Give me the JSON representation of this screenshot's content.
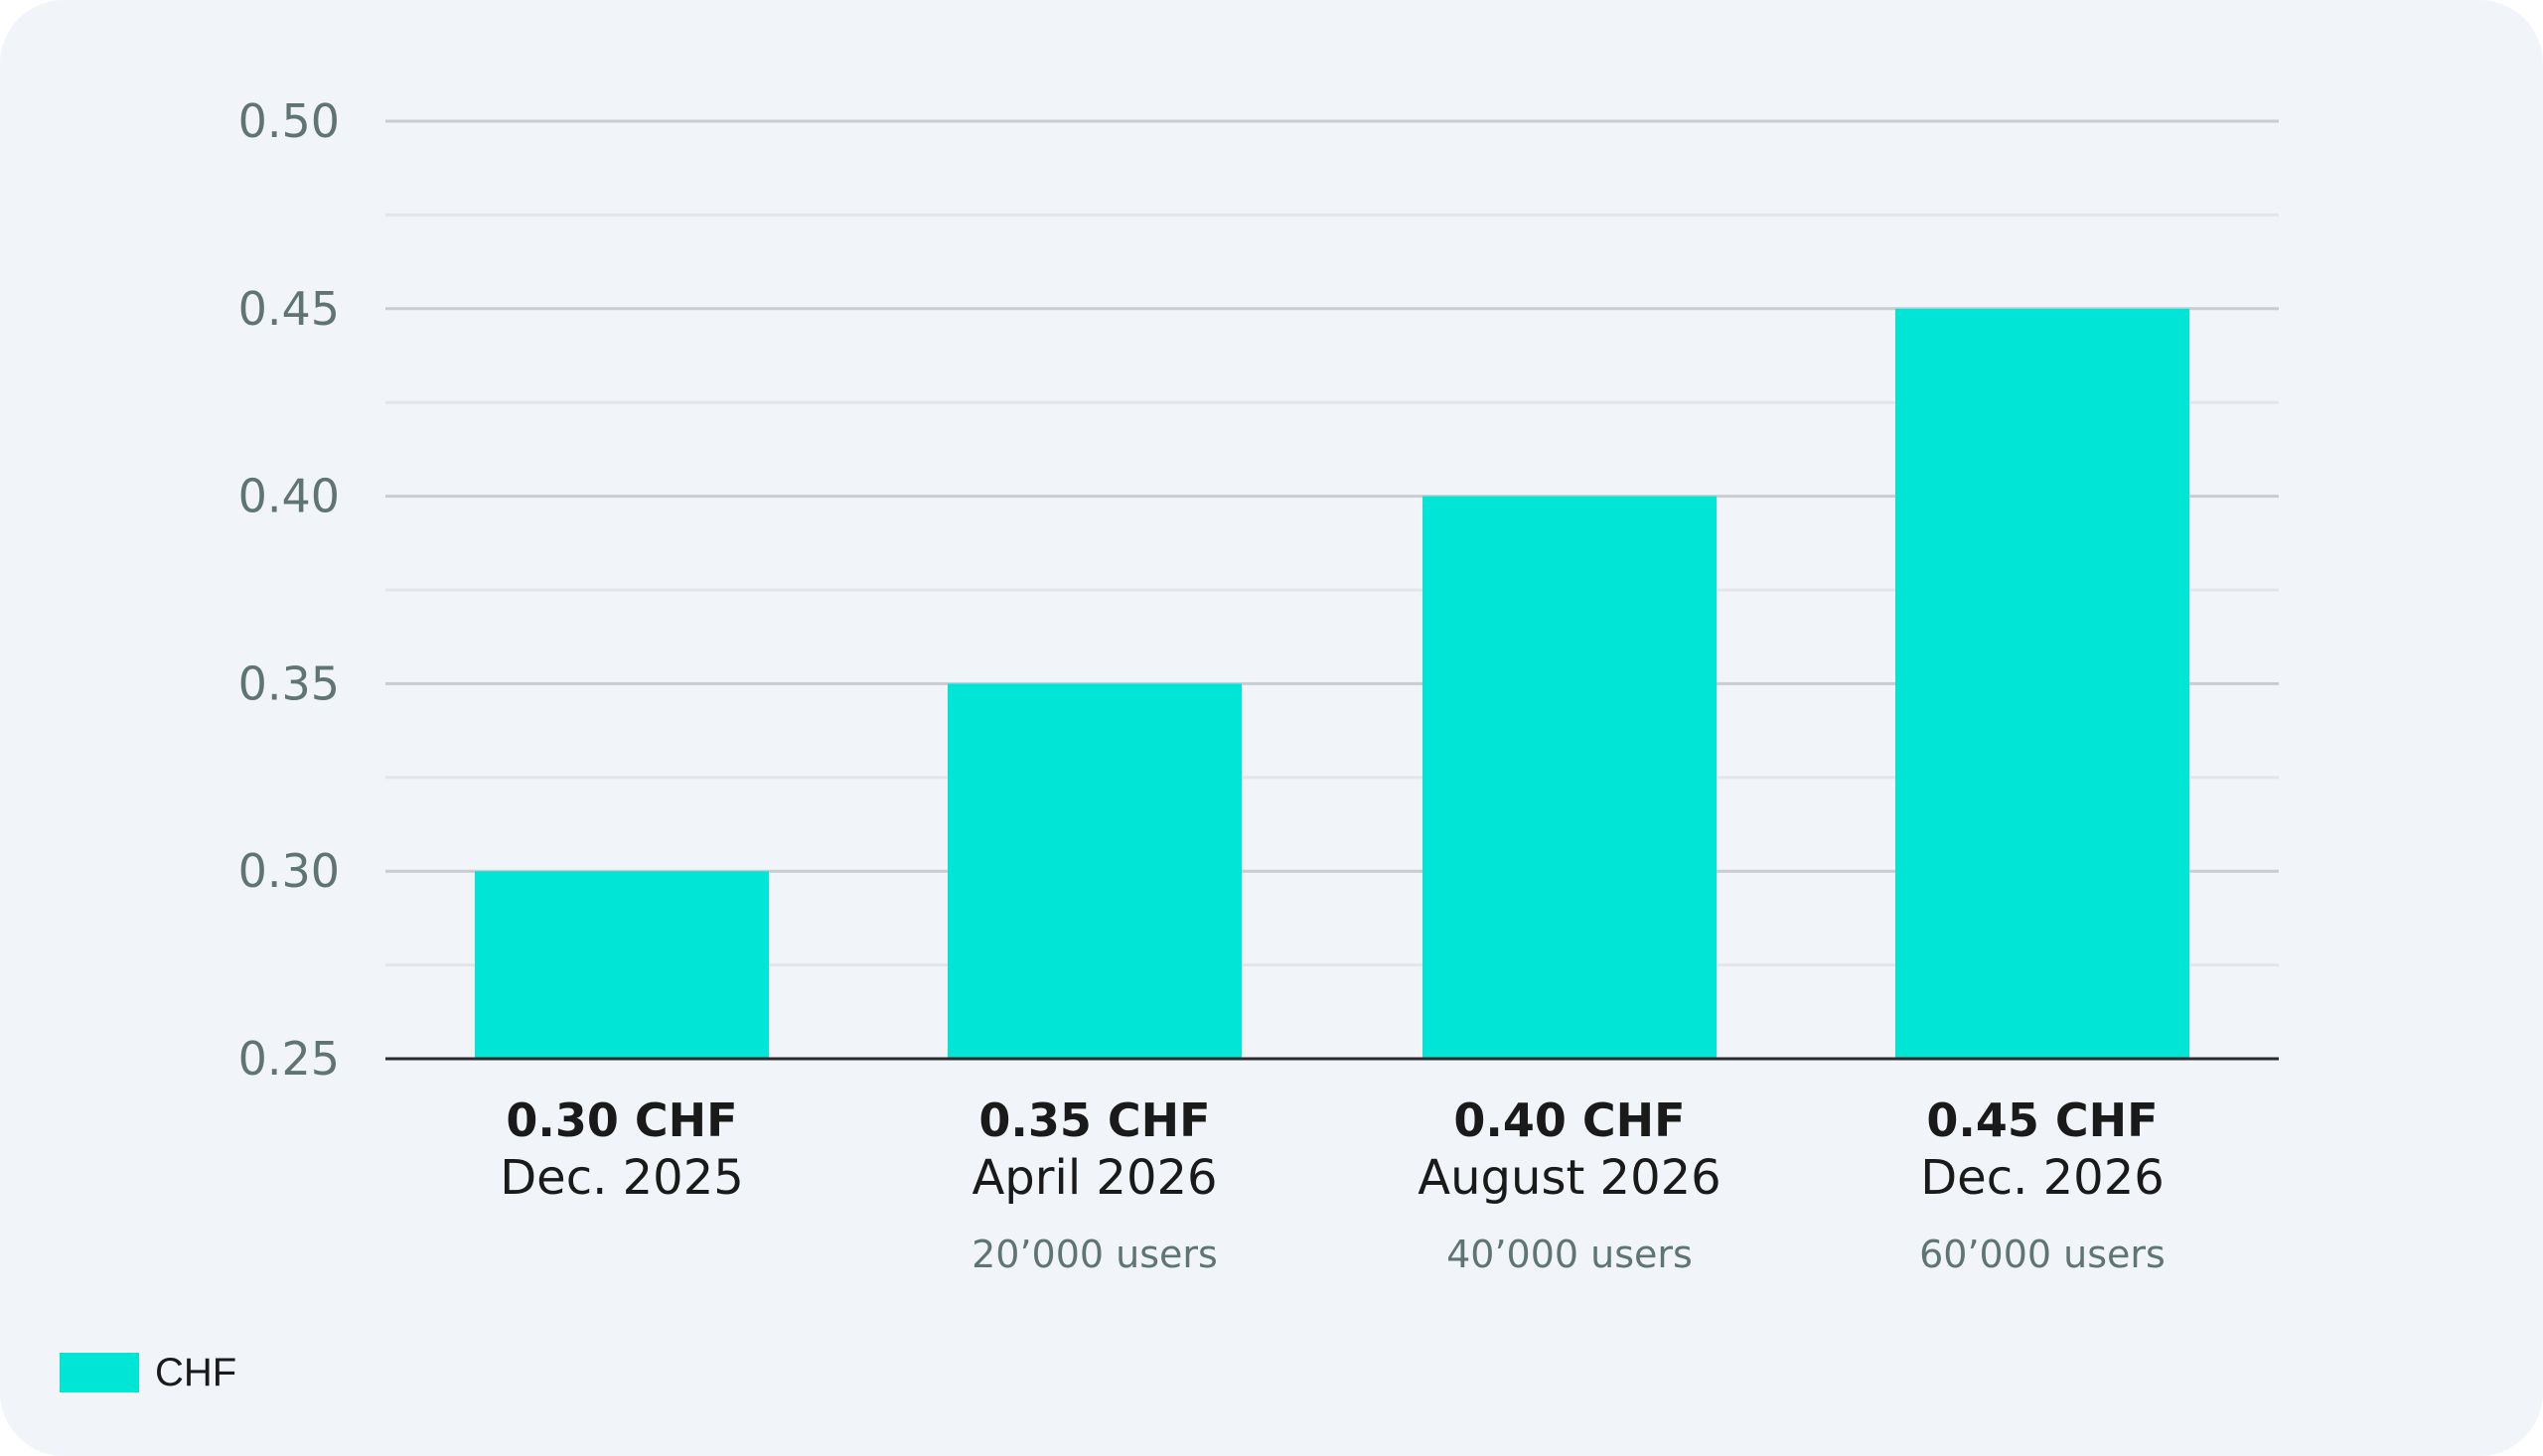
{
  "colors": {
    "bar": "#00e5d6",
    "card_background": "#f1f5f9",
    "major_grid": "#c9cdd1",
    "minor_grid": "#e2e6ea",
    "axis_line": "#2b2b2b",
    "tick_text": "#5f7574",
    "label_text": "#1a1a1a",
    "users_text": "#5f7574"
  },
  "chart_data": {
    "type": "bar",
    "categories": [
      "Dec. 2025",
      "April 2026",
      "August 2026",
      "Dec. 2026"
    ],
    "value_labels": [
      "0.30 CHF",
      "0.35 CHF",
      "0.40 CHF",
      "0.45 CHF"
    ],
    "user_labels": [
      "",
      "20’000 users",
      "40’000 users",
      "60’000 users"
    ],
    "series": [
      {
        "name": "CHF",
        "values": [
          0.3,
          0.35,
          0.4,
          0.45
        ]
      }
    ],
    "yticks": [
      "0.25",
      "0.30",
      "0.35",
      "0.40",
      "0.45",
      "0.50"
    ],
    "ylim": [
      0.25,
      0.5
    ],
    "minor_grid_step": 0.025,
    "grid": true,
    "legend_position": "bottom-left"
  }
}
